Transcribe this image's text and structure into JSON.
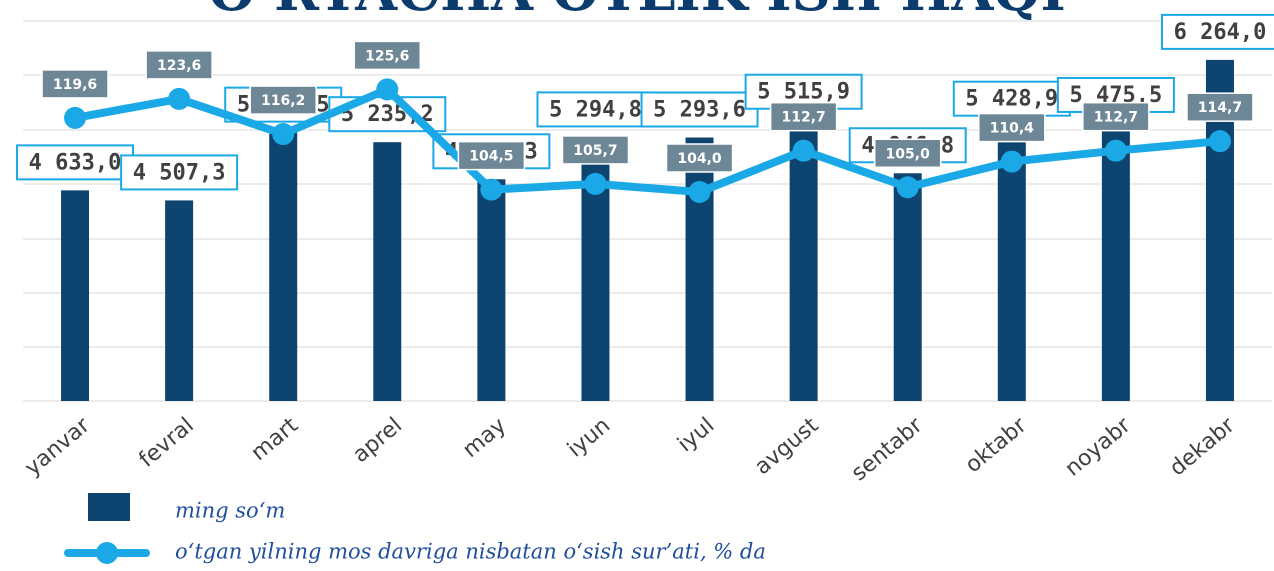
{
  "chart_data": {
    "type": "bar_line",
    "title": "O‘RTACHA OYLIK ISH HAQI",
    "categories": [
      "yanvar",
      "fevral",
      "mart",
      "aprel",
      "may",
      "iyun",
      "iyul",
      "avgust",
      "sentabr",
      "oktabr",
      "noyabr",
      "dekabr"
    ],
    "series": [
      {
        "name": "ming so‘m",
        "type": "bar",
        "color": "#0e4470",
        "values": [
          4633.0,
          4507.3,
          5354.5,
          5235.2,
          4771.3,
          5294.8,
          5293.6,
          5515.9,
          4846.8,
          5428.9,
          5475.5,
          6264.0
        ],
        "value_labels": [
          "4 633,0",
          "4 507,3",
          "5 354,5",
          "5 235,2",
          "4 771,3",
          "5 294,8",
          "5 293,6",
          "5 515,9",
          "4 846,8",
          "5 428,9",
          "5 475,5",
          "6 264,0"
        ]
      },
      {
        "name": "o‘tgan yilning mos davriga nisbatan o‘sish sur’ati, % da",
        "type": "line",
        "axis": "y2",
        "color": "#1aa9e6",
        "values": [
          119.6,
          123.6,
          116.2,
          125.6,
          104.5,
          105.7,
          104.0,
          112.7,
          105.0,
          110.4,
          112.7,
          114.7
        ],
        "value_labels": [
          "119,6",
          "123,6",
          "116,2",
          "125,6",
          "104,5",
          "105,7",
          "104,0",
          "112,7",
          "105,0",
          "110,4",
          "112,7",
          "114,7"
        ]
      }
    ],
    "ylim": [
      2000,
      6750
    ],
    "y2lim": [
      60,
      140
    ],
    "grid": true
  }
}
